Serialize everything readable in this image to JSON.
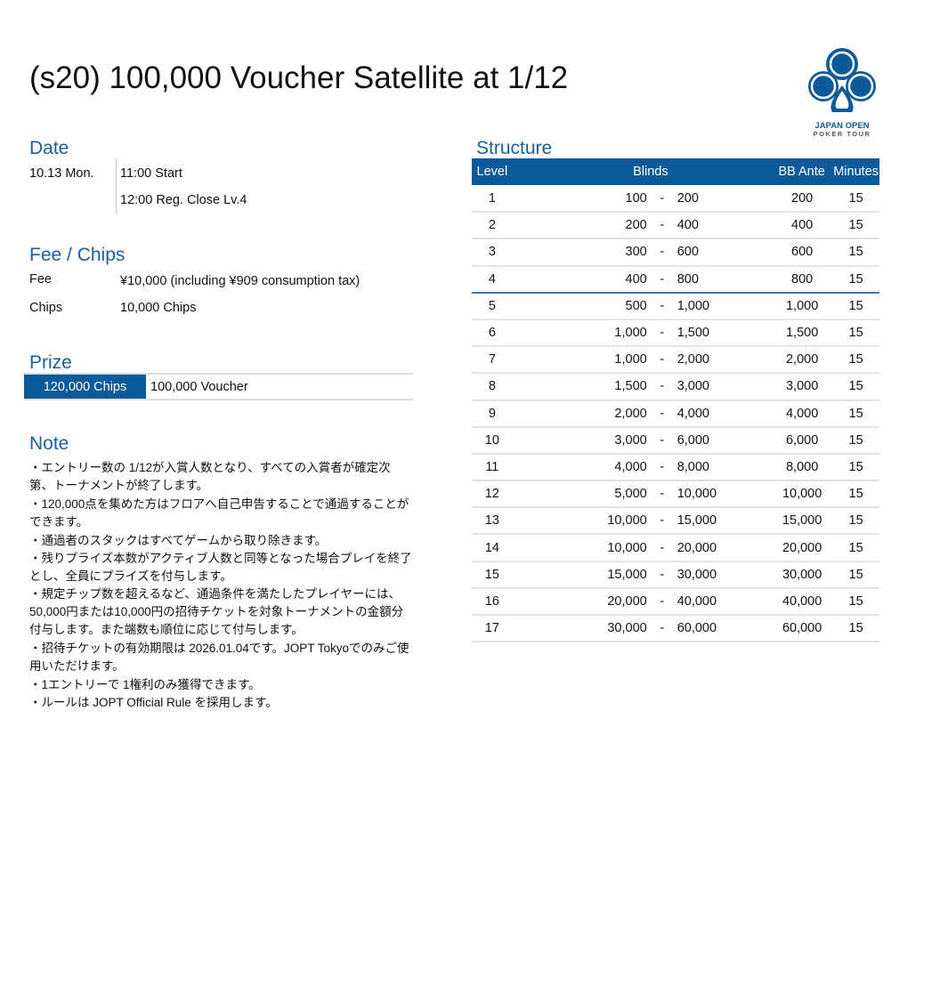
{
  "title": "(s20) 100,000 Voucher Satellite at 1/12",
  "logo": {
    "line1": "JAPAN OPEN",
    "line2": "POKER TOUR",
    "color": "#0d5a9a"
  },
  "date": {
    "heading": "Date",
    "day": "10.13 Mon.",
    "start": "11:00 Start",
    "reg_close": "12:00 Reg. Close Lv.4"
  },
  "fee_chips": {
    "heading": "Fee / Chips",
    "fee_label": "Fee",
    "fee_value": "¥10,000 (including ¥909 consumption tax)",
    "chips_label": "Chips",
    "chips_value": "10,000 Chips"
  },
  "prize": {
    "heading": "Prize",
    "chips": "120,000 Chips",
    "reward": "100,000 Voucher"
  },
  "note": {
    "heading": "Note",
    "lines": [
      "・エントリー数の 1/12が入賞人数となり、すべての入賞者が確定次第、トーナメントが終了します。",
      "・120,000点を集めた方はフロアへ自己申告することで通過することができます。",
      "・通過者のスタックはすべてゲームから取り除きます。",
      "・残りプライズ本数がアクティブ人数と同等となった場合プレイを終了とし、全員にプライズを付与します。",
      "・規定チップ数を超えるなど、通過条件を満たしたプレイヤーには、50,000円または10,000円の招待チケットを対象トーナメントの金額分付与します。また端数も順位に応じて付与します。",
      "・招待チケットの有効期限は 2026.01.04です。JOPT Tokyoでのみご使用いただけます。",
      "・1エントリーで 1権利のみ獲得できます。",
      "・ルールは JOPT Official Rule を採用します。"
    ]
  },
  "structure": {
    "heading": "Structure",
    "columns": [
      "Level",
      "Blinds",
      "BB Ante",
      "Minutes"
    ],
    "rows": [
      {
        "level": "1",
        "sb": "100",
        "bb": "200",
        "ante": "200",
        "minutes": "15"
      },
      {
        "level": "2",
        "sb": "200",
        "bb": "400",
        "ante": "400",
        "minutes": "15"
      },
      {
        "level": "3",
        "sb": "300",
        "bb": "600",
        "ante": "600",
        "minutes": "15"
      },
      {
        "level": "4",
        "sb": "400",
        "bb": "800",
        "ante": "800",
        "minutes": "15"
      },
      {
        "level": "5",
        "sb": "500",
        "bb": "1,000",
        "ante": "1,000",
        "minutes": "15"
      },
      {
        "level": "6",
        "sb": "1,000",
        "bb": "1,500",
        "ante": "1,500",
        "minutes": "15"
      },
      {
        "level": "7",
        "sb": "1,000",
        "bb": "2,000",
        "ante": "2,000",
        "minutes": "15"
      },
      {
        "level": "8",
        "sb": "1,500",
        "bb": "3,000",
        "ante": "3,000",
        "minutes": "15"
      },
      {
        "level": "9",
        "sb": "2,000",
        "bb": "4,000",
        "ante": "4,000",
        "minutes": "15"
      },
      {
        "level": "10",
        "sb": "3,000",
        "bb": "6,000",
        "ante": "6,000",
        "minutes": "15"
      },
      {
        "level": "11",
        "sb": "4,000",
        "bb": "8,000",
        "ante": "8,000",
        "minutes": "15"
      },
      {
        "level": "12",
        "sb": "5,000",
        "bb": "10,000",
        "ante": "10,000",
        "minutes": "15"
      },
      {
        "level": "13",
        "sb": "10,000",
        "bb": "15,000",
        "ante": "15,000",
        "minutes": "15"
      },
      {
        "level": "14",
        "sb": "10,000",
        "bb": "20,000",
        "ante": "20,000",
        "minutes": "15"
      },
      {
        "level": "15",
        "sb": "15,000",
        "bb": "30,000",
        "ante": "30,000",
        "minutes": "15"
      },
      {
        "level": "16",
        "sb": "20,000",
        "bb": "40,000",
        "ante": "40,000",
        "minutes": "15"
      },
      {
        "level": "17",
        "sb": "30,000",
        "bb": "60,000",
        "ante": "60,000",
        "minutes": "15"
      }
    ],
    "blind_separator": "-",
    "reg_close_after_level": "4"
  }
}
